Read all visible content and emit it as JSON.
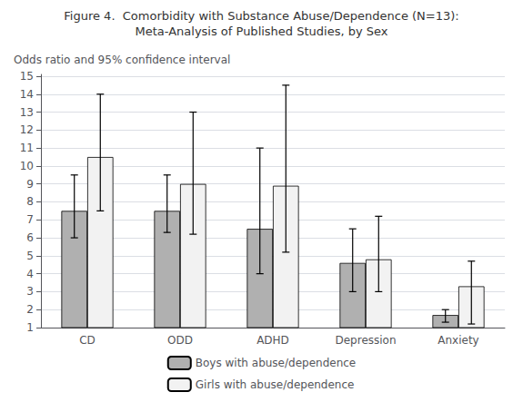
{
  "chart_data": {
    "type": "bar",
    "title": "Figure 4.  Comorbidity with Substance Abuse/Dependence (N=13):",
    "subtitle": "Meta-Analysis of Published Studies, by Sex",
    "ylabel": "Odds ratio and 95% confidence interval",
    "categories": [
      "CD",
      "ODD",
      "ADHD",
      "Depression",
      "Anxiety"
    ],
    "series": [
      {
        "name": "Boys with abuse/dependence",
        "color": "#b0b0b0",
        "values": [
          7.5,
          7.5,
          6.5,
          4.6,
          1.7
        ],
        "ci_low": [
          6.0,
          6.3,
          4.0,
          3.0,
          1.3
        ],
        "ci_high": [
          9.5,
          9.5,
          11.0,
          6.5,
          2.0
        ]
      },
      {
        "name": "Girls with abuse/dependence",
        "color": "#f2f2f2",
        "values": [
          10.5,
          9.0,
          8.9,
          4.8,
          3.3
        ],
        "ci_low": [
          7.5,
          6.2,
          5.2,
          3.0,
          1.2
        ],
        "ci_high": [
          14.0,
          13.0,
          14.5,
          7.2,
          4.7
        ]
      }
    ],
    "ylim": [
      1,
      15.1
    ],
    "yticks": [
      1,
      2,
      3,
      4,
      5,
      6,
      7,
      8,
      9,
      10,
      11,
      12,
      13,
      14,
      15
    ],
    "grid": true,
    "legend": "bottom"
  }
}
